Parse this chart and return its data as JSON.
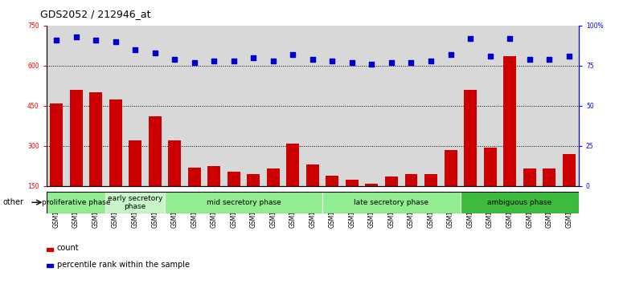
{
  "title": "GDS2052 / 212946_at",
  "samples": [
    "GSM109814",
    "GSM109815",
    "GSM109816",
    "GSM109817",
    "GSM109820",
    "GSM109821",
    "GSM109822",
    "GSM109824",
    "GSM109825",
    "GSM109826",
    "GSM109827",
    "GSM109828",
    "GSM109829",
    "GSM109830",
    "GSM109831",
    "GSM109834",
    "GSM109835",
    "GSM109836",
    "GSM109837",
    "GSM109838",
    "GSM109839",
    "GSM109818",
    "GSM109819",
    "GSM109823",
    "GSM109832",
    "GSM109833",
    "GSM109840"
  ],
  "counts": [
    460,
    510,
    500,
    475,
    320,
    410,
    320,
    220,
    225,
    205,
    195,
    215,
    310,
    230,
    190,
    175,
    160,
    185,
    195,
    195,
    285,
    510,
    295,
    635,
    215,
    215,
    270
  ],
  "percentile": [
    91,
    93,
    91,
    90,
    85,
    83,
    79,
    77,
    78,
    78,
    80,
    78,
    82,
    79,
    78,
    77,
    76,
    77,
    77,
    78,
    82,
    92,
    81,
    92,
    79,
    79,
    81
  ],
  "ylim_left": [
    150,
    750
  ],
  "ylim_right": [
    0,
    100
  ],
  "yticks_left": [
    150,
    300,
    450,
    600,
    750
  ],
  "yticks_right": [
    0,
    25,
    50,
    75,
    100
  ],
  "bar_color": "#cc0000",
  "dot_color": "#0000cc",
  "bg_color": "#d8d8d8",
  "phase_groups": [
    {
      "label": "proliferative phase",
      "start": 0,
      "end": 3,
      "color": "#90ee90"
    },
    {
      "label": "early secretory\nphase",
      "start": 3,
      "end": 6,
      "color": "#c8f5c8"
    },
    {
      "label": "mid secretory phase",
      "start": 6,
      "end": 14,
      "color": "#90ee90"
    },
    {
      "label": "late secretory phase",
      "start": 14,
      "end": 21,
      "color": "#90ee90"
    },
    {
      "label": "ambiguous phase",
      "start": 21,
      "end": 27,
      "color": "#3dbb3d"
    }
  ],
  "other_label": "other",
  "legend_count": "count",
  "legend_pct": "percentile rank within the sample",
  "grid_yticks": [
    300,
    450,
    600
  ],
  "title_fontsize": 9,
  "tick_fontsize": 5.5,
  "phase_fontsize": 6.5,
  "legend_fontsize": 7
}
